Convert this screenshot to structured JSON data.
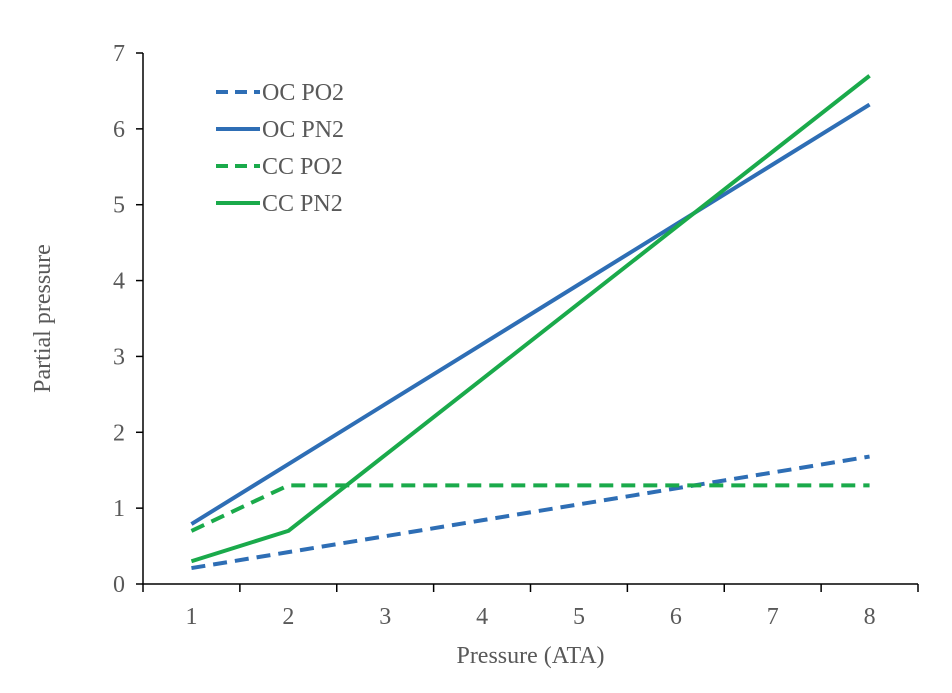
{
  "chart_data": {
    "type": "line",
    "title": "",
    "xlabel": "Pressure (ATA)",
    "ylabel": "Partial pressure",
    "x": [
      1,
      2,
      3,
      4,
      5,
      6,
      7,
      8
    ],
    "xlim": [
      0.5,
      8.5
    ],
    "ylim": [
      0,
      7
    ],
    "xticks": [
      1,
      2,
      3,
      4,
      5,
      6,
      7,
      8
    ],
    "yticks": [
      0,
      1,
      2,
      3,
      4,
      5,
      6,
      7
    ],
    "grid": false,
    "legend": "top-left",
    "series": [
      {
        "name": "OC PO2",
        "color": "#2E6EB5",
        "dash": true,
        "values": [
          0.21,
          0.42,
          0.63,
          0.84,
          1.05,
          1.26,
          1.47,
          1.68
        ]
      },
      {
        "name": "OC PN2",
        "color": "#2E6EB5",
        "dash": false,
        "values": [
          0.79,
          1.58,
          2.37,
          3.16,
          3.95,
          4.74,
          5.53,
          6.32
        ]
      },
      {
        "name": "CC PO2",
        "color": "#1AAA4B",
        "dash": true,
        "values": [
          0.7,
          1.3,
          1.3,
          1.3,
          1.3,
          1.3,
          1.3,
          1.3
        ]
      },
      {
        "name": "CC PN2",
        "color": "#1AAA4B",
        "dash": false,
        "values": [
          0.3,
          0.7,
          1.7,
          2.7,
          3.7,
          4.7,
          5.7,
          6.7
        ]
      }
    ]
  }
}
